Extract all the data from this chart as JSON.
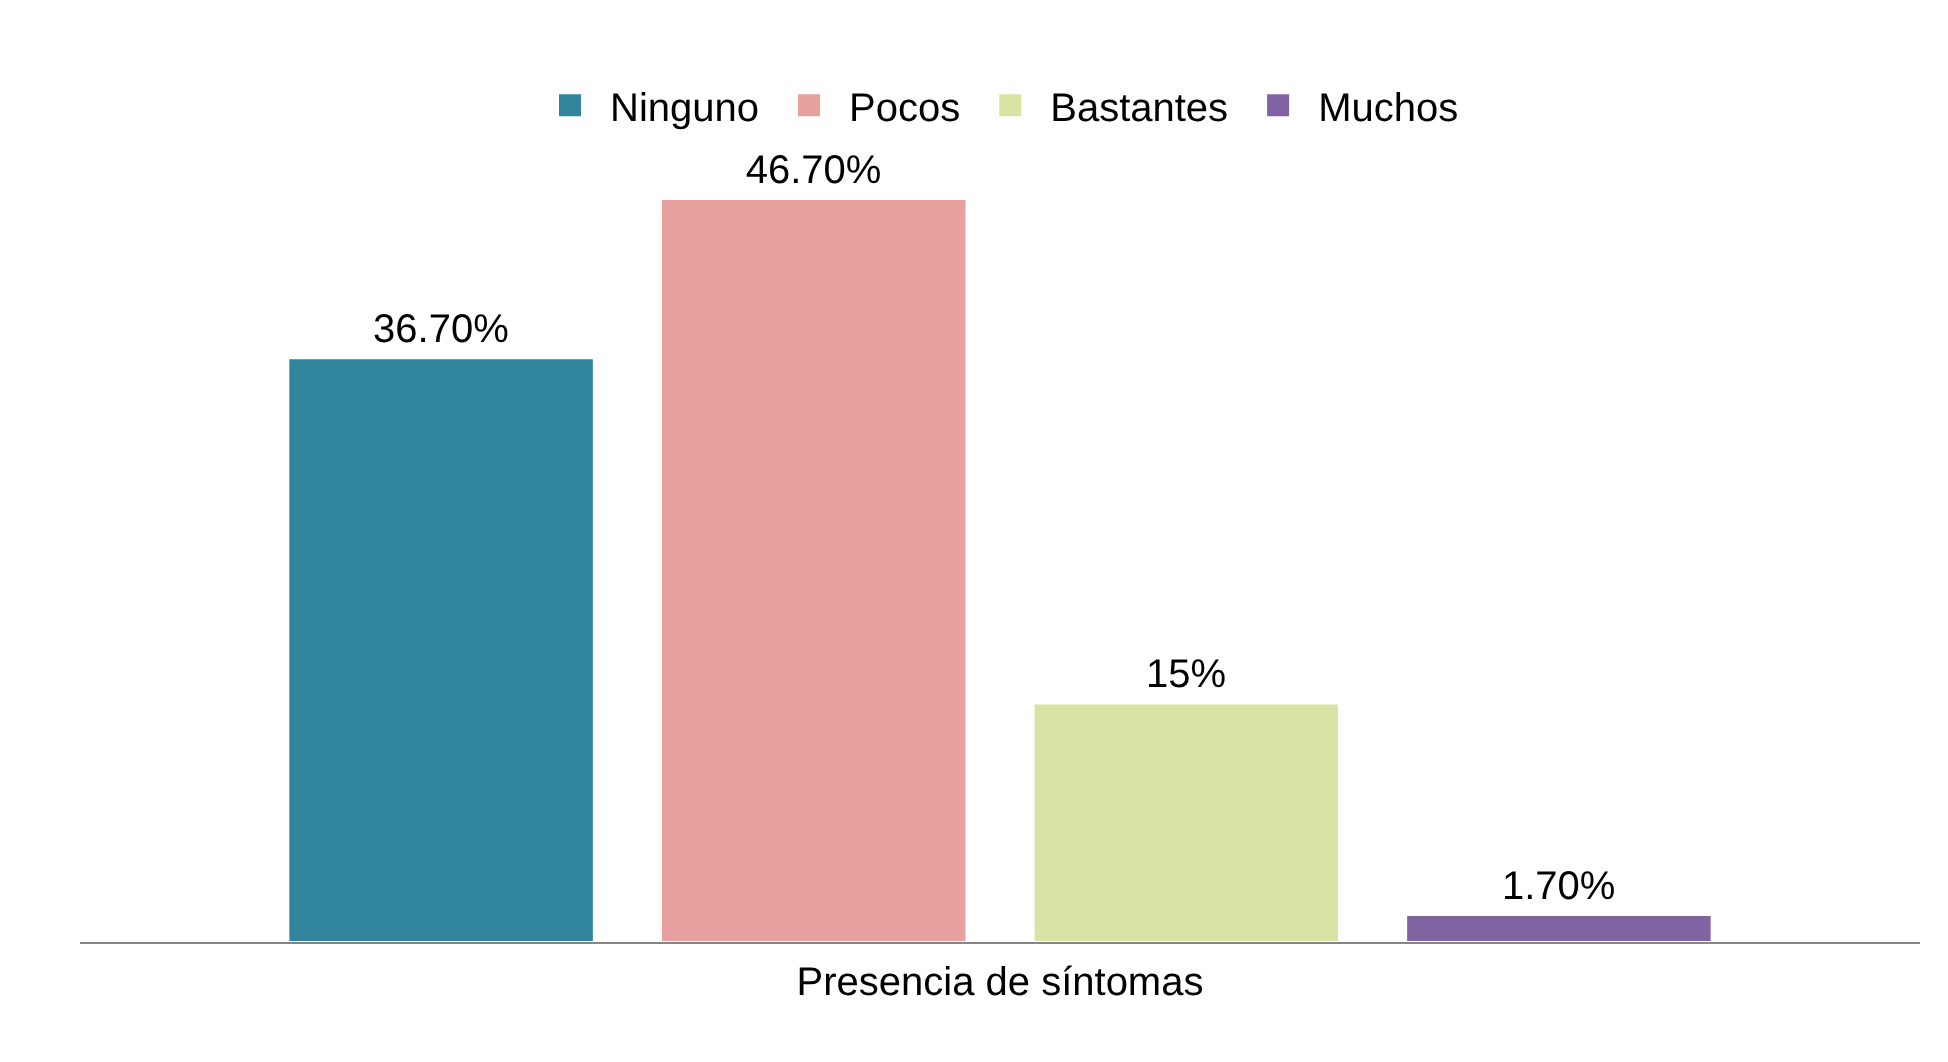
{
  "chart_data": {
    "type": "bar",
    "categories": [
      null
    ],
    "xlabel": "Presencia de síntomas",
    "series": [
      {
        "name": "Ninguno",
        "color": "#31859c",
        "values": [
          36.7
        ],
        "value_labels": [
          "36.70%"
        ]
      },
      {
        "name": "Pocos",
        "color": "#e6a19f",
        "values": [
          46.7
        ],
        "value_labels": [
          "46.70%"
        ]
      },
      {
        "name": "Bastantes",
        "color": "#d7e4a4",
        "values": [
          15
        ],
        "value_labels": [
          "15%"
        ]
      },
      {
        "name": "Muchos",
        "color": "#8064a2",
        "values": [
          1.7
        ],
        "value_labels": [
          "1.70%"
        ]
      }
    ],
    "legend": "top"
  }
}
